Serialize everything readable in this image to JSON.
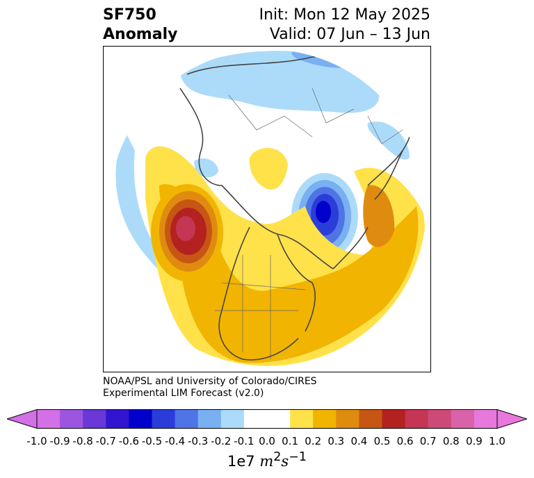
{
  "header": {
    "variable": "SF750",
    "field": "Anomaly",
    "init": "Init: Mon 12 May 2025",
    "valid": "Valid: 07 Jun – 13 Jun"
  },
  "credit": {
    "line1": "NOAA/PSL and University of Colorado/CIRES",
    "line2": "Experimental LIM Forecast (v2.0)"
  },
  "colorbar": {
    "ticks": [
      "-1.0",
      "-0.9",
      "-0.8",
      "-0.7",
      "-0.6",
      "-0.5",
      "-0.4",
      "-0.3",
      "-0.2",
      "-0.1",
      "0.0",
      "0.1",
      "0.2",
      "0.3",
      "0.4",
      "0.5",
      "0.6",
      "0.7",
      "0.8",
      "0.9",
      "1.0"
    ],
    "colors": [
      "#d470e6",
      "#9c55e0",
      "#6a38d6",
      "#3216cf",
      "#0000cd",
      "#2a3dd8",
      "#4f74e6",
      "#78b0f2",
      "#acdbfa",
      "#ffffff",
      "#ffffff",
      "#ffe14a",
      "#f1b400",
      "#df8b10",
      "#c75615",
      "#b42121",
      "#c43654",
      "#cd4a78",
      "#d963a9",
      "#e778dc"
    ],
    "units_prefix": "1e7",
    "units_base1": "m",
    "units_exp1": "2",
    "units_base2": "s",
    "units_exp2": "−1"
  },
  "map": {
    "projection": "north-polar-stereographic",
    "colors": {
      "positive_1": "#ffe14a",
      "positive_2": "#f1b400",
      "positive_3": "#df8b10",
      "positive_4": "#c75615",
      "positive_5": "#b42121",
      "positive_6": "#c43654",
      "negative_1": "#acdbfa",
      "negative_2": "#78b0f2",
      "negative_3": "#4f74e6",
      "negative_4": "#2a3dd8",
      "negative_5": "#0000cd",
      "coastline": "#444444"
    }
  }
}
